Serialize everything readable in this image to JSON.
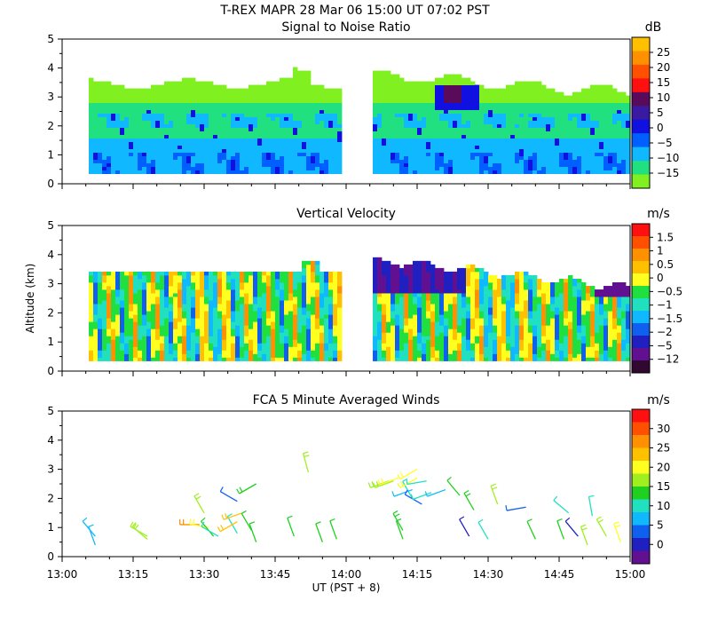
{
  "header": {
    "title": "T-REX   MAPR 28 Mar 06   15:00 UT   07:02   PST"
  },
  "chart_data": [
    {
      "type": "heatmap",
      "title": "Signal to Noise Ratio",
      "xlabel": "",
      "ylabel": "",
      "x_range": [
        "13:00",
        "15:00"
      ],
      "ylim": [
        0,
        5
      ],
      "y_ticks": [
        "0",
        "1",
        "2",
        "3",
        "4",
        "5"
      ],
      "colorbar": {
        "unit": "dB",
        "labels": [
          "25",
          "20",
          "15",
          "10",
          "5",
          "0",
          "−5",
          "−10",
          "−15"
        ],
        "colors": [
          "#ffc000",
          "#ff9000",
          "#ff5000",
          "#ff1010",
          "#5a0a5a",
          "#3a1aa0",
          "#1010e0",
          "#0060ff",
          "#10b8ff",
          "#20e080",
          "#80f020"
        ]
      },
      "data_gap": [
        "13:59",
        "14:05"
      ]
    },
    {
      "type": "heatmap",
      "title": "Vertical Velocity",
      "xlabel": "",
      "ylabel": "Altitude (km)",
      "x_range": [
        "13:00",
        "15:00"
      ],
      "ylim": [
        0,
        5
      ],
      "y_ticks": [
        "0",
        "1",
        "2",
        "3",
        "4",
        "5"
      ],
      "colorbar": {
        "unit": "m/s",
        "labels": [
          "1.5",
          "1",
          "0.5",
          "0",
          "−0.5",
          "−1",
          "−1.5",
          "−2",
          "−5",
          "−12"
        ],
        "colors": [
          "#ff1010",
          "#ff5000",
          "#ff9000",
          "#ffc000",
          "#ffff20",
          "#20e040",
          "#20e0c0",
          "#10b8ff",
          "#1060f0",
          "#2020c0",
          "#601090",
          "#300830"
        ]
      },
      "data_gap": [
        "13:59",
        "14:05"
      ]
    },
    {
      "type": "scatter",
      "title": "FCA 5 Minute Averaged Winds",
      "xlabel": "UT  (PST + 8)",
      "ylabel": "",
      "x_ticks": [
        "13:00",
        "13:15",
        "13:30",
        "13:45",
        "14:00",
        "14:15",
        "14:30",
        "14:45",
        "15:00"
      ],
      "ylim": [
        0,
        5
      ],
      "y_ticks": [
        "0",
        "1",
        "2",
        "3",
        "4",
        "5"
      ],
      "colorbar": {
        "unit": "m/s",
        "labels": [
          "30",
          "25",
          "20",
          "15",
          "10",
          "5",
          "0"
        ],
        "colors": [
          "#ff1010",
          "#ff5000",
          "#ff9000",
          "#ffc000",
          "#ffff20",
          "#a0f020",
          "#20d020",
          "#20e0c0",
          "#10b8ff",
          "#1060f0",
          "#2020c0",
          "#601090"
        ]
      },
      "barbs": [
        {
          "t": "13:07",
          "alt": 0.7,
          "speed": 9,
          "dir": 320
        },
        {
          "t": "13:07",
          "alt": 0.4,
          "speed": 9,
          "dir": 340
        },
        {
          "t": "13:18",
          "alt": 0.7,
          "speed": 16,
          "dir": 300
        },
        {
          "t": "13:18",
          "alt": 0.6,
          "speed": 17,
          "dir": 310
        },
        {
          "t": "13:29",
          "alt": 1.1,
          "speed": 24,
          "dir": 270
        },
        {
          "t": "13:30",
          "alt": 1.5,
          "speed": 17,
          "dir": 330
        },
        {
          "t": "13:31",
          "alt": 1.0,
          "speed": 18,
          "dir": 280
        },
        {
          "t": "13:32",
          "alt": 0.7,
          "speed": 14,
          "dir": 320
        },
        {
          "t": "13:33",
          "alt": 0.7,
          "speed": 12,
          "dir": 300
        },
        {
          "t": "13:37",
          "alt": 0.8,
          "speed": 10,
          "dir": 330
        },
        {
          "t": "13:37",
          "alt": 1.9,
          "speed": 5,
          "dir": 300
        },
        {
          "t": "13:37",
          "alt": 1.2,
          "speed": 22,
          "dir": 240
        },
        {
          "t": "13:38",
          "alt": 1.5,
          "speed": 22,
          "dir": 250
        },
        {
          "t": "13:40",
          "alt": 0.9,
          "speed": 14,
          "dir": 330
        },
        {
          "t": "13:41",
          "alt": 2.5,
          "speed": 15,
          "dir": 240
        },
        {
          "t": "13:41",
          "alt": 0.5,
          "speed": 13,
          "dir": 340
        },
        {
          "t": "13:49",
          "alt": 0.7,
          "speed": 14,
          "dir": 340
        },
        {
          "t": "13:52",
          "alt": 2.9,
          "speed": 17,
          "dir": 345
        },
        {
          "t": "13:55",
          "alt": 0.5,
          "speed": 13,
          "dir": 340
        },
        {
          "t": "13:58",
          "alt": 0.6,
          "speed": 13,
          "dir": 340
        },
        {
          "t": "14:09",
          "alt": 2.6,
          "speed": 16,
          "dir": 250
        },
        {
          "t": "14:10",
          "alt": 2.6,
          "speed": 17,
          "dir": 250
        },
        {
          "t": "14:11",
          "alt": 2.7,
          "speed": 19,
          "dir": 250
        },
        {
          "t": "14:12",
          "alt": 0.9,
          "speed": 15,
          "dir": 330
        },
        {
          "t": "14:12",
          "alt": 0.6,
          "speed": 14,
          "dir": 340
        },
        {
          "t": "14:14",
          "alt": 2.0,
          "speed": 10,
          "dir": 330
        },
        {
          "t": "14:14",
          "alt": 2.3,
          "speed": 8,
          "dir": 250
        },
        {
          "t": "14:15",
          "alt": 2.7,
          "speed": 19,
          "dir": 240
        },
        {
          "t": "14:15",
          "alt": 3.0,
          "speed": 19,
          "dir": 240
        },
        {
          "t": "14:16",
          "alt": 1.8,
          "speed": 5,
          "dir": 300
        },
        {
          "t": "14:17",
          "alt": 2.6,
          "speed": 12,
          "dir": 260
        },
        {
          "t": "14:18",
          "alt": 2.2,
          "speed": 10,
          "dir": 250
        },
        {
          "t": "14:21",
          "alt": 2.3,
          "speed": 8,
          "dir": 250
        },
        {
          "t": "14:24",
          "alt": 2.1,
          "speed": 14,
          "dir": 320
        },
        {
          "t": "14:26",
          "alt": 0.7,
          "speed": 4,
          "dir": 330
        },
        {
          "t": "14:27",
          "alt": 1.6,
          "speed": 15,
          "dir": 330
        },
        {
          "t": "14:30",
          "alt": 0.6,
          "speed": 12,
          "dir": 330
        },
        {
          "t": "14:32",
          "alt": 1.8,
          "speed": 16,
          "dir": 340
        },
        {
          "t": "14:38",
          "alt": 1.7,
          "speed": 5,
          "dir": 260
        },
        {
          "t": "14:40",
          "alt": 0.6,
          "speed": 14,
          "dir": 335
        },
        {
          "t": "14:46",
          "alt": 0.6,
          "speed": 14,
          "dir": 340
        },
        {
          "t": "14:47",
          "alt": 1.5,
          "speed": 11,
          "dir": 310
        },
        {
          "t": "14:49",
          "alt": 0.7,
          "speed": 4,
          "dir": 320
        },
        {
          "t": "14:51",
          "alt": 0.4,
          "speed": 16,
          "dir": 340
        },
        {
          "t": "14:52",
          "alt": 1.4,
          "speed": 10,
          "dir": 350
        },
        {
          "t": "14:55",
          "alt": 0.7,
          "speed": 16,
          "dir": 330
        },
        {
          "t": "14:58",
          "alt": 0.5,
          "speed": 18,
          "dir": 340
        }
      ]
    }
  ]
}
